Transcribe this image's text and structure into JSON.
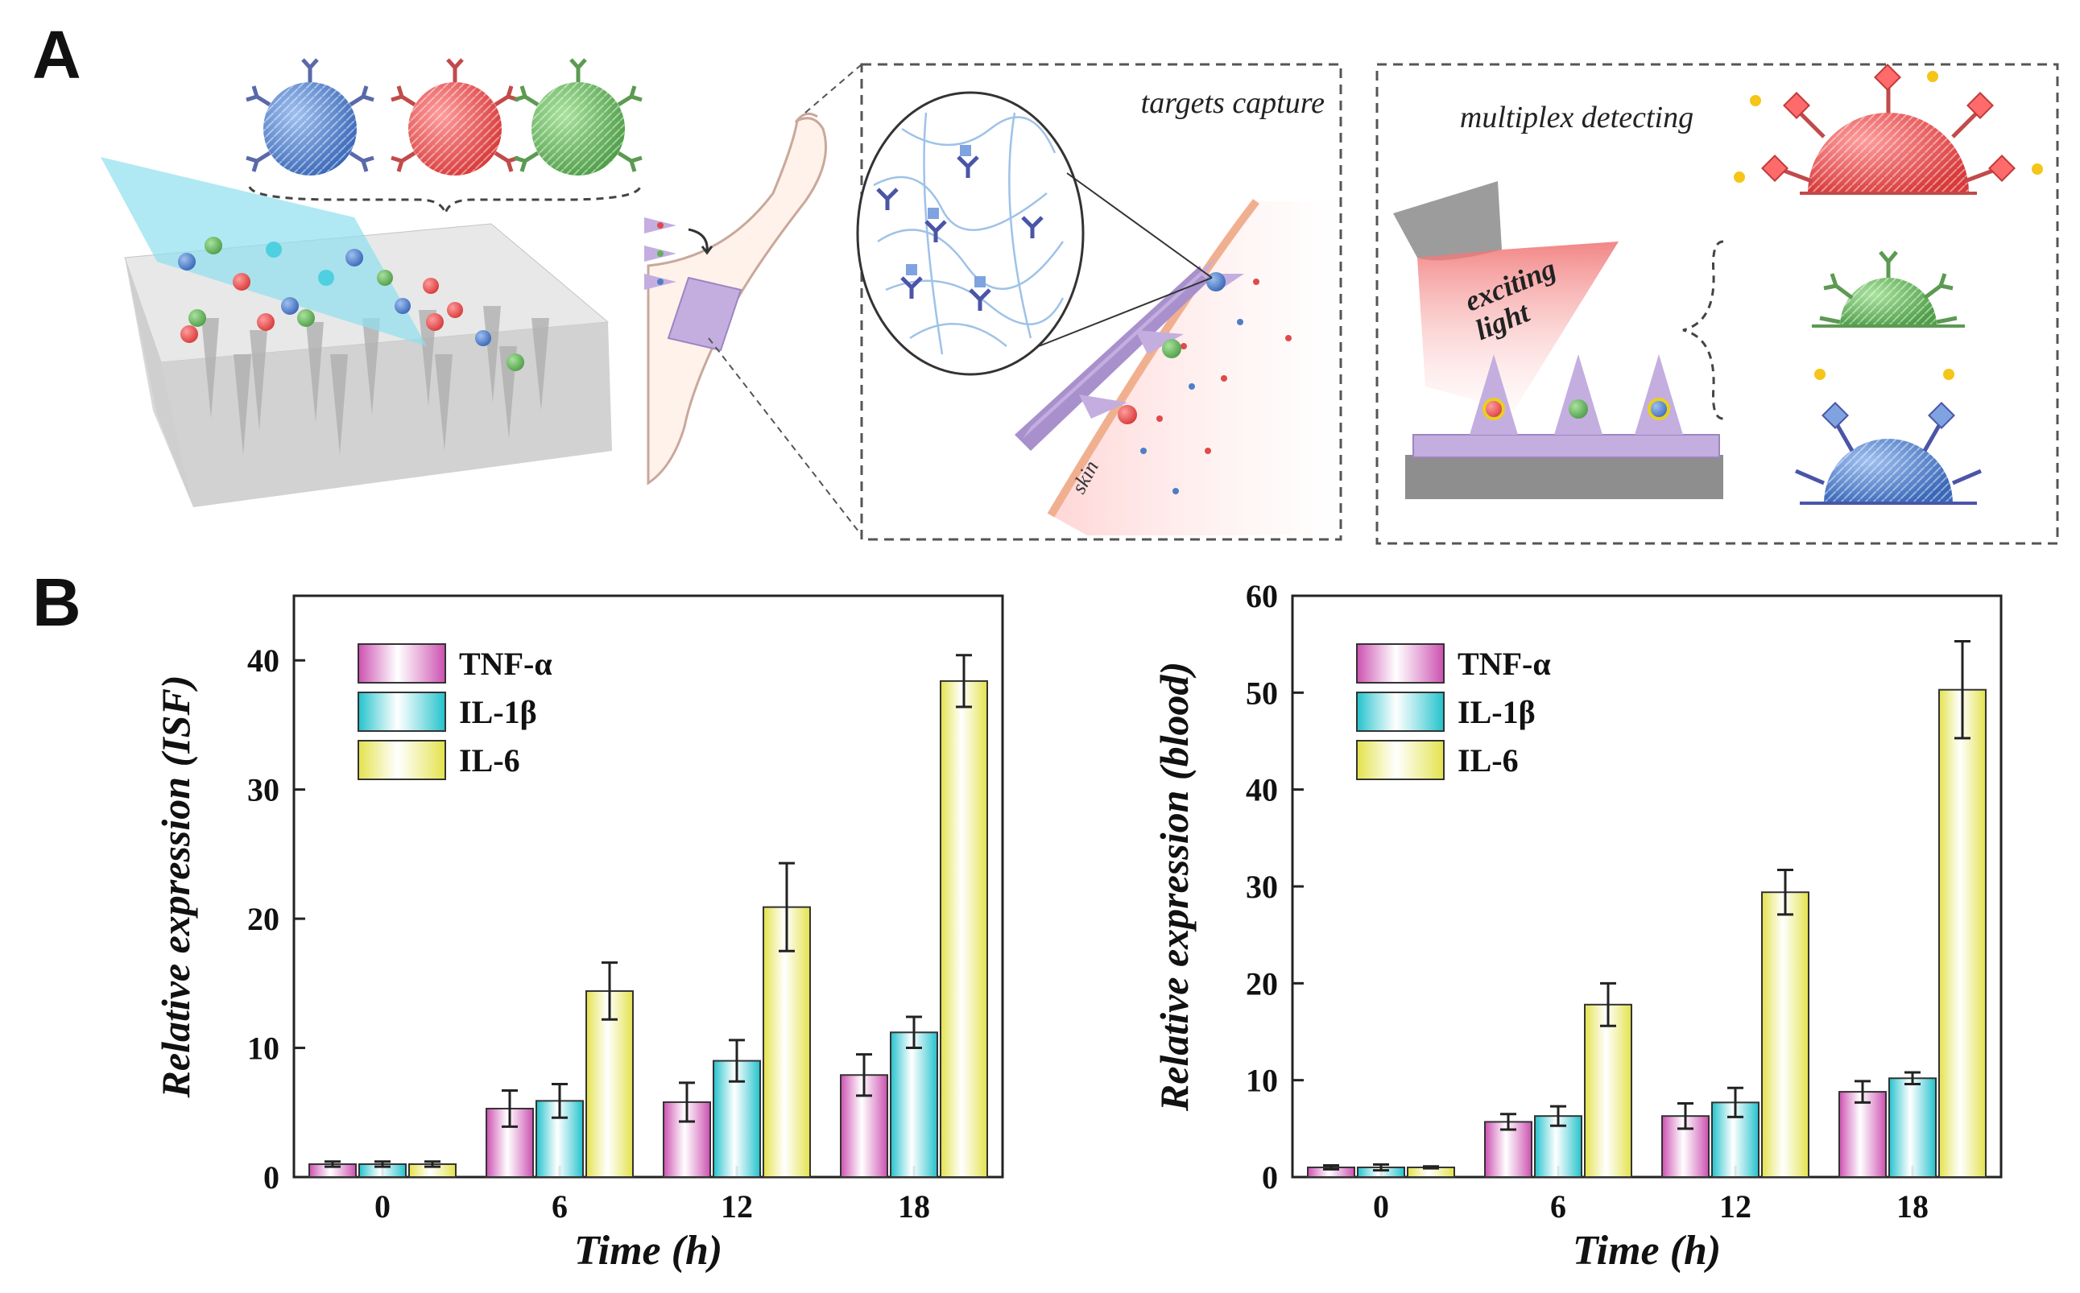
{
  "panels": {
    "a_label": "A",
    "b_label": "B"
  },
  "schematic": {
    "capture_label": "targets capture",
    "detect_label": "multiplex detecting",
    "light_label_1": "exciting",
    "light_label_2": "light",
    "skin_label": "skin"
  },
  "colors": {
    "tnf": "#cc4fb0",
    "il1b": "#22c2cc",
    "il6": "#e3e24a",
    "np_blue": "#4f7ec6",
    "np_red": "#e04a4a",
    "np_green": "#62b05c",
    "patch": "#b9a3d6"
  },
  "chart_data": [
    {
      "type": "bar",
      "title": "",
      "xlabel": "Time (h)",
      "ylabel": "Relative expression (ISF)",
      "categories": [
        "0",
        "6",
        "12",
        "18"
      ],
      "ylim": [
        0,
        45
      ],
      "yticks": [
        0,
        10,
        20,
        30,
        40
      ],
      "legend_position": "top-left",
      "series": [
        {
          "name": "TNF-α",
          "key": "tnf",
          "values": [
            1.0,
            5.3,
            5.8,
            7.9
          ],
          "errors": [
            0.2,
            1.4,
            1.5,
            1.6
          ]
        },
        {
          "name": "IL-1β",
          "key": "il1b",
          "values": [
            1.0,
            5.9,
            9.0,
            11.2
          ],
          "errors": [
            0.2,
            1.3,
            1.6,
            1.2
          ]
        },
        {
          "name": "IL-6",
          "key": "il6",
          "values": [
            1.0,
            14.4,
            20.9,
            38.4
          ],
          "errors": [
            0.2,
            2.2,
            3.4,
            2.0
          ]
        }
      ]
    },
    {
      "type": "bar",
      "title": "",
      "xlabel": "Time (h)",
      "ylabel": "Relative expression (blood)",
      "categories": [
        "0",
        "6",
        "12",
        "18"
      ],
      "ylim": [
        0,
        60
      ],
      "yticks": [
        0,
        10,
        20,
        30,
        40,
        50,
        60
      ],
      "legend_position": "top-left",
      "series": [
        {
          "name": "TNF-α",
          "key": "tnf",
          "values": [
            1.0,
            5.7,
            6.3,
            8.8
          ],
          "errors": [
            0.2,
            0.8,
            1.3,
            1.1
          ]
        },
        {
          "name": "IL-1β",
          "key": "il1b",
          "values": [
            1.0,
            6.3,
            7.7,
            10.2
          ],
          "errors": [
            0.3,
            1.0,
            1.5,
            0.6
          ]
        },
        {
          "name": "IL-6",
          "key": "il6",
          "values": [
            1.0,
            17.8,
            29.4,
            50.3
          ],
          "errors": [
            0.1,
            2.2,
            2.3,
            5.0
          ]
        }
      ]
    }
  ]
}
